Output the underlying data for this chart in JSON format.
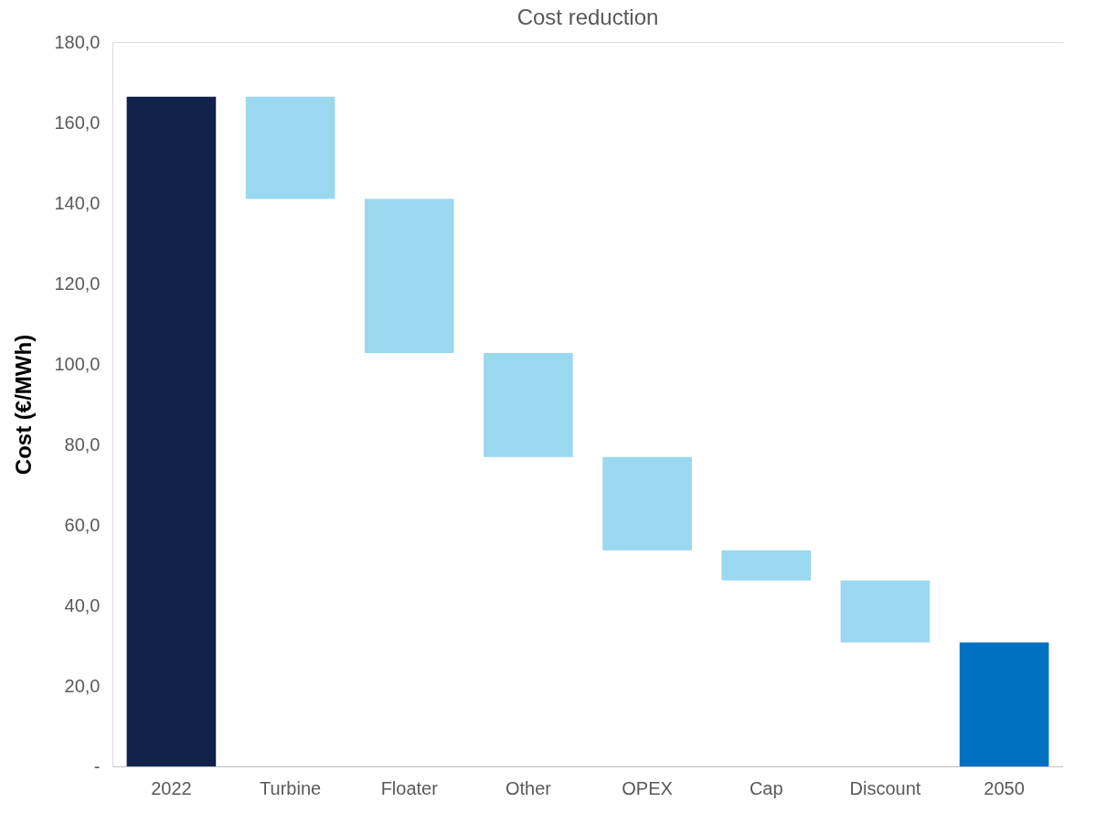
{
  "chart_data": {
    "type": "bar",
    "title": "Cost reduction",
    "ylabel": "Cost (€/MWh)",
    "categories": [
      "2022",
      "Turbine",
      "Floater",
      "Other",
      "OPEX",
      "Cap",
      "Discount",
      "2050"
    ],
    "values": [
      166.4,
      -25.4,
      -38.3,
      -25.8,
      -23.2,
      -7.5,
      -15.4,
      30.8
    ],
    "base": [
      0,
      166.4,
      141.0,
      102.7,
      76.9,
      53.7,
      46.2,
      0
    ],
    "colors": [
      "#10214a",
      "#99d8ef",
      "#99d8ef",
      "#99d8ef",
      "#99d8ef",
      "#99d8ef",
      "#99d8ef",
      "#0070c0"
    ],
    "ylim": [
      0,
      180
    ],
    "yticks": [
      {
        "value": 0,
        "label": "-"
      },
      {
        "value": 20,
        "label": "20,0"
      },
      {
        "value": 40,
        "label": "40,0"
      },
      {
        "value": 60,
        "label": "60,0"
      },
      {
        "value": 80,
        "label": "80,0"
      },
      {
        "value": 100,
        "label": "100,0"
      },
      {
        "value": 120,
        "label": "120,0"
      },
      {
        "value": 140,
        "label": "140,0"
      },
      {
        "value": 160,
        "label": "160,0"
      },
      {
        "value": 180,
        "label": "180,0"
      }
    ],
    "grid": false
  }
}
